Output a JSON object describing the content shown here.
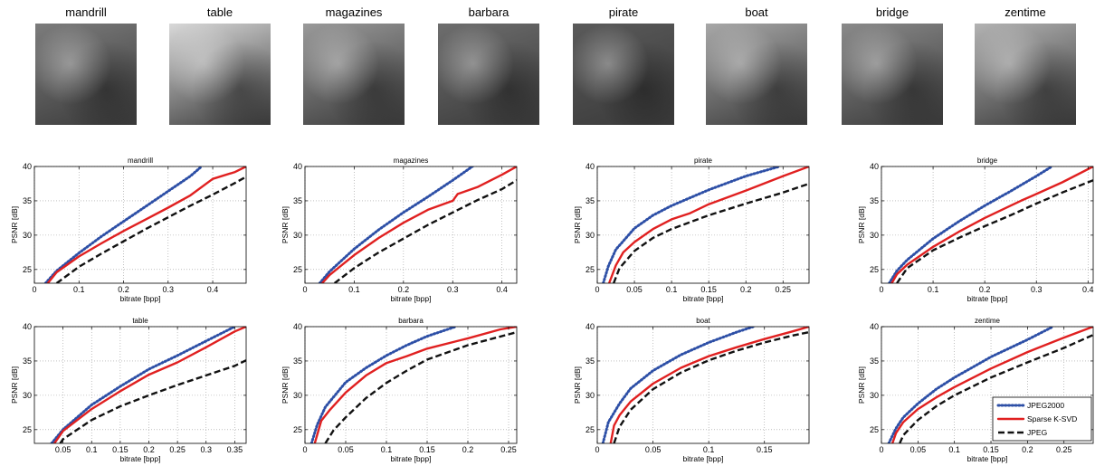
{
  "thumbnails": [
    {
      "label": "mandrill",
      "tone": "#7c7c7c",
      "icon": "baboon-face"
    },
    {
      "label": "table",
      "tone": "#d9d9d9",
      "icon": "bicycle-wheel-still-life"
    },
    {
      "label": "magazines",
      "tone": "#9a9a9a",
      "icon": "magazines-pile"
    },
    {
      "label": "barbara",
      "tone": "#6e6e6e",
      "icon": "woman-seated"
    },
    {
      "label": "pirate",
      "tone": "#5a5a5a",
      "icon": "pirate-portrait"
    },
    {
      "label": "boat",
      "tone": "#a8a8a8",
      "icon": "fishing-boat"
    },
    {
      "label": "bridge",
      "tone": "#8a8a8a",
      "icon": "bridge-river"
    },
    {
      "label": "zentime",
      "tone": "#b3b3b3",
      "icon": "sailboat"
    }
  ],
  "legend": {
    "placement": "bottom-right of zentime plot",
    "entries": [
      {
        "label": "JPEG2000",
        "color": "#2d4fa6",
        "style": "dotted"
      },
      {
        "label": "Sparse K-SVD",
        "color": "#e02020",
        "style": "solid"
      },
      {
        "label": "JPEG",
        "color": "#111111",
        "style": "dashed"
      }
    ]
  },
  "chart_data": [
    {
      "type": "line",
      "title": "mandrill",
      "xlabel": "bitrate [bpp]",
      "ylabel": "PSNR [dB]",
      "xlim": [
        0,
        0.475
      ],
      "ylim": [
        23,
        40
      ],
      "xticks": [
        0,
        0.1,
        0.2,
        0.3,
        0.4
      ],
      "xticklabels": [
        "0",
        "0.1",
        "0.2",
        "0.3",
        "0.4"
      ],
      "yticks": [
        25,
        30,
        35,
        40
      ],
      "yticklabels": [
        "25",
        "30",
        "35",
        "40"
      ],
      "grid": true,
      "series": [
        {
          "name": "JPEG2000",
          "x": [
            0.025,
            0.05,
            0.1,
            0.15,
            0.2,
            0.25,
            0.3,
            0.35,
            0.375
          ],
          "y": [
            23,
            24.8,
            27.4,
            29.8,
            32,
            34.2,
            36.4,
            38.6,
            40
          ]
        },
        {
          "name": "Sparse K-SVD",
          "x": [
            0.03,
            0.05,
            0.1,
            0.15,
            0.2,
            0.25,
            0.3,
            0.35,
            0.4,
            0.45,
            0.475
          ],
          "y": [
            23,
            24.6,
            26.9,
            28.8,
            30.6,
            32.3,
            34,
            35.8,
            38.2,
            39.2,
            40
          ]
        },
        {
          "name": "JPEG",
          "x": [
            0.05,
            0.1,
            0.15,
            0.2,
            0.25,
            0.3,
            0.35,
            0.4,
            0.45,
            0.475
          ],
          "y": [
            23,
            25.4,
            27.3,
            29.1,
            30.9,
            32.6,
            34.3,
            35.9,
            37.6,
            38.5
          ]
        }
      ]
    },
    {
      "type": "line",
      "title": "magazines",
      "xlabel": "bitrate [bpp]",
      "ylabel": "PSNR [dB]",
      "xlim": [
        0,
        0.43
      ],
      "ylim": [
        23,
        40
      ],
      "xticks": [
        0,
        0.1,
        0.2,
        0.3,
        0.4
      ],
      "xticklabels": [
        "0",
        "0.1",
        "0.2",
        "0.3",
        "0.4"
      ],
      "yticks": [
        25,
        30,
        35,
        40
      ],
      "yticklabels": [
        "25",
        "30",
        "35",
        "40"
      ],
      "grid": true,
      "series": [
        {
          "name": "JPEG2000",
          "x": [
            0.03,
            0.05,
            0.1,
            0.15,
            0.2,
            0.25,
            0.3,
            0.34
          ],
          "y": [
            23,
            24.7,
            28,
            30.8,
            33.3,
            35.6,
            38,
            40
          ]
        },
        {
          "name": "Sparse K-SVD",
          "x": [
            0.035,
            0.05,
            0.1,
            0.15,
            0.2,
            0.25,
            0.3,
            0.31,
            0.35,
            0.4,
            0.43
          ],
          "y": [
            23,
            24.2,
            27.1,
            29.6,
            31.8,
            33.7,
            35,
            36,
            37,
            38.8,
            40
          ]
        },
        {
          "name": "JPEG",
          "x": [
            0.06,
            0.1,
            0.15,
            0.2,
            0.25,
            0.3,
            0.35,
            0.4,
            0.43
          ],
          "y": [
            23,
            25.2,
            27.5,
            29.5,
            31.5,
            33.3,
            35.1,
            36.7,
            38
          ]
        }
      ]
    },
    {
      "type": "line",
      "title": "pirate",
      "xlabel": "bitrate [bpp]",
      "ylabel": "PSNR [dB]",
      "xlim": [
        0,
        0.285
      ],
      "ylim": [
        23,
        40
      ],
      "xticks": [
        0,
        0.05,
        0.1,
        0.15,
        0.2,
        0.25
      ],
      "xticklabels": [
        "0",
        "0.05",
        "0.1",
        "0.15",
        "0.2",
        "0.25"
      ],
      "yticks": [
        25,
        30,
        35,
        40
      ],
      "yticklabels": [
        "25",
        "30",
        "35",
        "40"
      ],
      "grid": true,
      "series": [
        {
          "name": "JPEG2000",
          "x": [
            0.008,
            0.015,
            0.025,
            0.05,
            0.075,
            0.1,
            0.15,
            0.2,
            0.245
          ],
          "y": [
            23,
            25.5,
            27.9,
            31,
            32.9,
            34.3,
            36.6,
            38.6,
            40
          ]
        },
        {
          "name": "Sparse K-SVD",
          "x": [
            0.016,
            0.025,
            0.035,
            0.05,
            0.075,
            0.1,
            0.125,
            0.15,
            0.2,
            0.25,
            0.285
          ],
          "y": [
            23,
            25.6,
            27.5,
            29,
            30.9,
            32.3,
            33.2,
            34.5,
            36.5,
            38.6,
            40
          ]
        },
        {
          "name": "JPEG",
          "x": [
            0.022,
            0.03,
            0.05,
            0.075,
            0.1,
            0.15,
            0.2,
            0.25,
            0.285
          ],
          "y": [
            23,
            25.2,
            27.7,
            29.6,
            30.9,
            32.9,
            34.6,
            36.2,
            37.5
          ]
        }
      ]
    },
    {
      "type": "line",
      "title": "bridge",
      "xlabel": "bitrate [bpp]",
      "ylabel": "PSNR [dB]",
      "xlim": [
        0,
        0.41
      ],
      "ylim": [
        23,
        40
      ],
      "xticks": [
        0,
        0.1,
        0.2,
        0.3,
        0.4
      ],
      "xticklabels": [
        "0",
        "0.1",
        "0.2",
        "0.3",
        "0.4"
      ],
      "yticks": [
        25,
        30,
        35,
        40
      ],
      "yticklabels": [
        "25",
        "30",
        "35",
        "40"
      ],
      "grid": true,
      "series": [
        {
          "name": "JPEG2000",
          "x": [
            0.015,
            0.03,
            0.05,
            0.1,
            0.15,
            0.2,
            0.25,
            0.3,
            0.33
          ],
          "y": [
            23,
            24.8,
            26.4,
            29.5,
            32,
            34.3,
            36.4,
            38.6,
            40
          ]
        },
        {
          "name": "Sparse K-SVD",
          "x": [
            0.02,
            0.03,
            0.05,
            0.1,
            0.15,
            0.2,
            0.25,
            0.27,
            0.3,
            0.35,
            0.41
          ],
          "y": [
            23,
            24.3,
            25.7,
            28.3,
            30.5,
            32.5,
            34.3,
            35,
            36,
            37.7,
            40
          ]
        },
        {
          "name": "JPEG",
          "x": [
            0.03,
            0.05,
            0.1,
            0.15,
            0.2,
            0.25,
            0.3,
            0.35,
            0.41
          ],
          "y": [
            23,
            25.2,
            27.8,
            29.6,
            31.3,
            32.9,
            34.6,
            36.2,
            38
          ]
        }
      ]
    },
    {
      "type": "line",
      "title": "table",
      "xlabel": "bitrate [bpp]",
      "ylabel": "PSNR [dB]",
      "xlim": [
        0,
        0.37
      ],
      "ylim": [
        23,
        40
      ],
      "xticks": [
        0.05,
        0.1,
        0.15,
        0.2,
        0.25,
        0.3,
        0.35
      ],
      "xticklabels": [
        "0.05",
        "0.1",
        "0.15",
        "0.2",
        "0.25",
        "0.3",
        "0.35"
      ],
      "yticks": [
        25,
        30,
        35,
        40
      ],
      "yticklabels": [
        "25",
        "30",
        "35",
        "40"
      ],
      "grid": true,
      "series": [
        {
          "name": "JPEG2000",
          "x": [
            0.03,
            0.05,
            0.1,
            0.15,
            0.2,
            0.25,
            0.3,
            0.35
          ],
          "y": [
            23,
            25,
            28.6,
            31.3,
            33.8,
            35.8,
            37.9,
            40
          ]
        },
        {
          "name": "Sparse K-SVD",
          "x": [
            0.035,
            0.05,
            0.1,
            0.15,
            0.2,
            0.25,
            0.3,
            0.35,
            0.37
          ],
          "y": [
            23,
            24.8,
            28,
            30.6,
            33,
            34.8,
            37,
            39.3,
            40
          ]
        },
        {
          "name": "JPEG",
          "x": [
            0.045,
            0.05,
            0.1,
            0.15,
            0.2,
            0.25,
            0.3,
            0.35,
            0.37
          ],
          "y": [
            23,
            23.6,
            26.4,
            28.4,
            30,
            31.5,
            32.9,
            34.3,
            35.1
          ]
        }
      ]
    },
    {
      "type": "line",
      "title": "barbara",
      "xlabel": "bitrate [bpp]",
      "ylabel": "PSNR [dB]",
      "xlim": [
        0,
        0.26
      ],
      "ylim": [
        23,
        40
      ],
      "xticks": [
        0,
        0.05,
        0.1,
        0.15,
        0.2,
        0.25
      ],
      "xticklabels": [
        "0",
        "0.05",
        "0.1",
        "0.15",
        "0.2",
        "0.25"
      ],
      "yticks": [
        25,
        30,
        35,
        40
      ],
      "yticklabels": [
        "25",
        "30",
        "35",
        "40"
      ],
      "grid": true,
      "series": [
        {
          "name": "JPEG2000",
          "x": [
            0.008,
            0.015,
            0.025,
            0.05,
            0.075,
            0.1,
            0.125,
            0.15,
            0.185
          ],
          "y": [
            23,
            25.7,
            28.3,
            31.9,
            34,
            35.8,
            37.3,
            38.6,
            40
          ]
        },
        {
          "name": "Sparse K-SVD",
          "x": [
            0.012,
            0.02,
            0.03,
            0.05,
            0.075,
            0.1,
            0.125,
            0.15,
            0.2,
            0.24,
            0.26
          ],
          "y": [
            23,
            26.3,
            27.8,
            30.4,
            32.9,
            34.7,
            35.7,
            36.8,
            38.3,
            39.6,
            40
          ]
        },
        {
          "name": "JPEG",
          "x": [
            0.025,
            0.035,
            0.05,
            0.075,
            0.1,
            0.125,
            0.15,
            0.2,
            0.26
          ],
          "y": [
            23,
            24.9,
            26.8,
            29.6,
            31.8,
            33.6,
            35.2,
            37.3,
            39.2
          ]
        }
      ]
    },
    {
      "type": "line",
      "title": "boat",
      "xlabel": "bitrate [bpp]",
      "ylabel": "PSNR [dB]",
      "xlim": [
        0,
        0.19
      ],
      "ylim": [
        23,
        40
      ],
      "xticks": [
        0,
        0.05,
        0.1,
        0.15
      ],
      "xticklabels": [
        "0",
        "0.05",
        "0.1",
        "0.15"
      ],
      "yticks": [
        25,
        30,
        35,
        40
      ],
      "yticklabels": [
        "25",
        "30",
        "35",
        "40"
      ],
      "grid": true,
      "series": [
        {
          "name": "JPEG2000",
          "x": [
            0.005,
            0.01,
            0.02,
            0.03,
            0.05,
            0.075,
            0.1,
            0.125,
            0.14
          ],
          "y": [
            23,
            26.1,
            28.8,
            31,
            33.6,
            35.9,
            37.7,
            39.2,
            40
          ]
        },
        {
          "name": "Sparse K-SVD",
          "x": [
            0.012,
            0.015,
            0.02,
            0.03,
            0.05,
            0.075,
            0.1,
            0.125,
            0.15,
            0.175,
            0.19
          ],
          "y": [
            23,
            25.6,
            27.1,
            29.1,
            31.7,
            34,
            35.7,
            37,
            38.2,
            39.3,
            40
          ]
        },
        {
          "name": "JPEG",
          "x": [
            0.015,
            0.02,
            0.03,
            0.05,
            0.075,
            0.1,
            0.125,
            0.15,
            0.175,
            0.19
          ],
          "y": [
            23,
            25.4,
            27.9,
            30.9,
            33.3,
            35.1,
            36.5,
            37.7,
            38.7,
            39.2
          ]
        }
      ]
    },
    {
      "type": "line",
      "title": "zentime",
      "xlabel": "bitrate [bpp]",
      "ylabel": "PSNR [dB]",
      "xlim": [
        0,
        0.29
      ],
      "ylim": [
        23,
        40
      ],
      "xticks": [
        0,
        0.05,
        0.1,
        0.15,
        0.2,
        0.25
      ],
      "xticklabels": [
        "0",
        "0.05",
        "0.1",
        "0.15",
        "0.2",
        "0.25"
      ],
      "yticks": [
        25,
        30,
        35,
        40
      ],
      "yticklabels": [
        "25",
        "30",
        "35",
        "40"
      ],
      "grid": true,
      "series": [
        {
          "name": "JPEG2000",
          "x": [
            0.01,
            0.02,
            0.03,
            0.05,
            0.075,
            0.1,
            0.125,
            0.15,
            0.2,
            0.235
          ],
          "y": [
            23,
            25.2,
            26.8,
            28.8,
            30.9,
            32.6,
            34.1,
            35.6,
            38.1,
            40
          ]
        },
        {
          "name": "Sparse K-SVD",
          "x": [
            0.015,
            0.02,
            0.03,
            0.05,
            0.075,
            0.1,
            0.15,
            0.2,
            0.25,
            0.29
          ],
          "y": [
            23,
            24.5,
            26.1,
            28,
            29.7,
            31.2,
            33.9,
            36.3,
            38.4,
            40
          ]
        },
        {
          "name": "JPEG",
          "x": [
            0.025,
            0.03,
            0.05,
            0.075,
            0.1,
            0.15,
            0.2,
            0.25,
            0.29
          ],
          "y": [
            23,
            24.2,
            26.4,
            28.4,
            30,
            32.6,
            34.8,
            36.9,
            38.8
          ]
        }
      ]
    }
  ]
}
